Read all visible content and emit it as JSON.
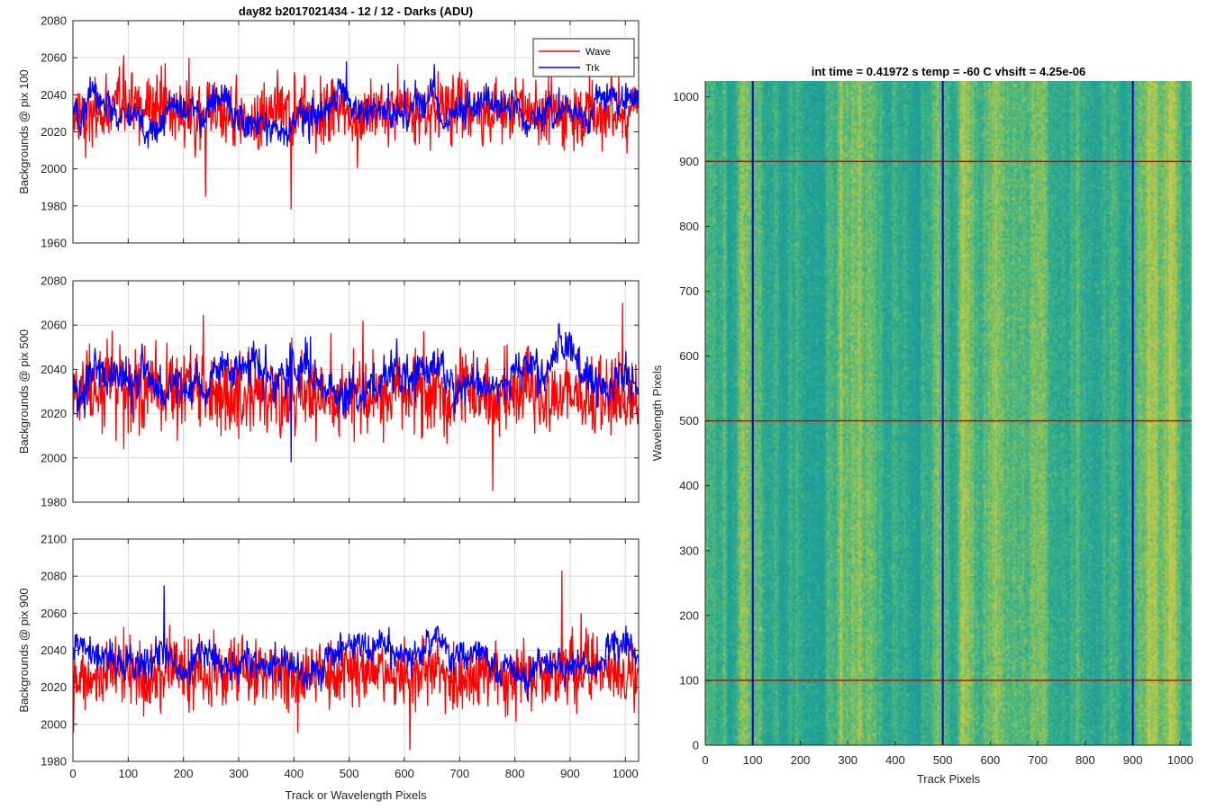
{
  "chart_data": [
    {
      "type": "line",
      "panel": "top-left",
      "title": "day82 b2017021434 - 12 / 12 - Darks (ADU)",
      "ylabel": "Backgrounds @ pix 100",
      "xlabel": "",
      "xlim": [
        0,
        1024
      ],
      "ylim": [
        1960,
        2080
      ],
      "xticks": [
        0,
        100,
        200,
        300,
        400,
        500,
        600,
        700,
        800,
        900,
        1000
      ],
      "yticks": [
        1960,
        1980,
        2000,
        2020,
        2040,
        2060,
        2080
      ],
      "grid": true,
      "legend": {
        "placement": "top-right",
        "entries": [
          "Wave",
          "Trk"
        ]
      },
      "series": [
        {
          "name": "Wave",
          "color": "#ff0000",
          "mean": 2030,
          "noise": 9,
          "spikes": [
            [
              240,
              1985
            ],
            [
              395,
              1978
            ],
            [
              210,
              2060
            ]
          ],
          "x_range": [
            0,
            1024
          ]
        },
        {
          "name": "Trk",
          "color": "#0000ff",
          "mean": 2030,
          "noise": 7,
          "spikes": [
            [
              495,
              2058
            ],
            [
              600,
              2048
            ]
          ],
          "x_range": [
            0,
            1024
          ]
        }
      ]
    },
    {
      "type": "line",
      "panel": "middle-left",
      "title": "",
      "ylabel": "Backgrounds @ pix 500",
      "xlabel": "",
      "xlim": [
        0,
        1024
      ],
      "ylim": [
        1980,
        2080
      ],
      "xticks": [
        0,
        100,
        200,
        300,
        400,
        500,
        600,
        700,
        800,
        900,
        1000
      ],
      "yticks": [
        1980,
        2000,
        2020,
        2040,
        2060,
        2080
      ],
      "grid": true,
      "series": [
        {
          "name": "Wave",
          "color": "#ff0000",
          "mean": 2028,
          "noise": 9,
          "spikes": [
            [
              760,
              1985
            ],
            [
              995,
              2070
            ],
            [
              525,
              2062
            ]
          ],
          "x_range": [
            0,
            1024
          ]
        },
        {
          "name": "Trk",
          "color": "#0000ff",
          "mean": 2032,
          "noise": 7,
          "spikes": [
            [
              395,
              1998
            ]
          ],
          "x_range": [
            0,
            1024
          ]
        }
      ]
    },
    {
      "type": "line",
      "panel": "bottom-left",
      "title": "",
      "ylabel": "Backgrounds @ pix 900",
      "xlabel": "Track or Wavelength Pixels",
      "xlim": [
        0,
        1024
      ],
      "ylim": [
        1980,
        2100
      ],
      "xticks": [
        0,
        100,
        200,
        300,
        400,
        500,
        600,
        700,
        800,
        900,
        1000
      ],
      "yticks": [
        1980,
        2000,
        2020,
        2040,
        2060,
        2080,
        2100
      ],
      "grid": true,
      "series": [
        {
          "name": "Wave",
          "color": "#ff0000",
          "mean": 2028,
          "noise": 9,
          "spikes": [
            [
              610,
              1986
            ],
            [
              885,
              2083
            ],
            [
              920,
              2060
            ]
          ],
          "x_range": [
            0,
            1024
          ]
        },
        {
          "name": "Trk",
          "color": "#0000ff",
          "mean": 2038,
          "noise": 7,
          "spikes": [
            [
              165,
              2075
            ]
          ],
          "x_range": [
            0,
            1024
          ]
        }
      ]
    },
    {
      "type": "heatmap",
      "panel": "right",
      "title": "int time = 0.41972 s    temp = -60 C    vhsift = 4.25e-06",
      "xlabel": "Track Pixels",
      "ylabel": "Wavelength Pixels",
      "xlim": [
        0,
        1024
      ],
      "ylim": [
        0,
        1024
      ],
      "xticks": [
        0,
        100,
        200,
        300,
        400,
        500,
        600,
        700,
        800,
        900,
        1000
      ],
      "yticks": [
        0,
        100,
        200,
        300,
        400,
        500,
        600,
        700,
        800,
        900,
        1000
      ],
      "colormap": [
        "#1e9c9a",
        "#2eab8f",
        "#52b87a",
        "#8cc45c",
        "#c7c94a"
      ],
      "vertical_lines": {
        "color": "#0000cc",
        "x": [
          100,
          500,
          900
        ]
      },
      "horizontal_lines": {
        "color": "#dd0000",
        "y": [
          100,
          500,
          900
        ]
      }
    }
  ]
}
